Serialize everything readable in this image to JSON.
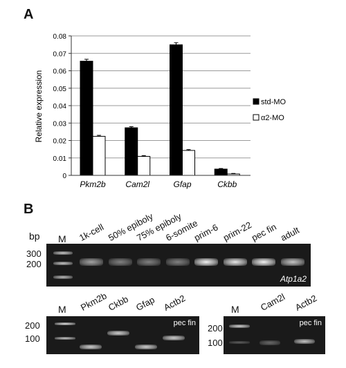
{
  "panel_a": {
    "label": "A"
  },
  "panel_b": {
    "label": "B"
  },
  "chart_data": {
    "type": "bar",
    "categories": [
      "Pkm2b",
      "Cam2l",
      "Gfap",
      "Ckbb"
    ],
    "series": [
      {
        "name": "std-MO",
        "values": [
          0.0655,
          0.0273,
          0.0749,
          0.0036
        ],
        "color": "#000000"
      },
      {
        "name": "α2-MO",
        "values": [
          0.0224,
          0.0109,
          0.0143,
          0.0008
        ],
        "color": "#ffffff"
      }
    ],
    "ylabel": "Relative expression",
    "xlabel": "",
    "ylim": [
      0,
      0.08
    ],
    "yticks": [
      "0",
      "0.01",
      "0.02",
      "0.03",
      "0.04",
      "0.05",
      "0.06",
      "0.07",
      "0.08"
    ],
    "grid": true,
    "legend": "right",
    "legend_entries": [
      "std-MO",
      "α2-MO"
    ]
  },
  "gel1": {
    "bp_label": "bp",
    "marker_label": "M",
    "bp_ticks": [
      "300",
      "200"
    ],
    "lanes": [
      "1k-cell",
      "50% epiboly",
      "75% epiboly",
      "6-somite",
      "prim-6",
      "prim-22",
      "pec fin",
      "adult"
    ],
    "gene": "Atp1a2",
    "band_brightness": [
      0.6,
      0.45,
      0.45,
      0.45,
      0.95,
      0.9,
      0.95,
      0.75
    ]
  },
  "gel2": {
    "marker_label": "M",
    "bp_ticks": [
      "200",
      "100"
    ],
    "lanes": [
      "Pkm2b",
      "Ckbb",
      "Gfap",
      "Actb2"
    ],
    "tissue": "pec fin"
  },
  "gel3": {
    "marker_label": "M",
    "bp_ticks": [
      "200",
      "100"
    ],
    "lanes": [
      "Cam2l",
      "Actb2"
    ],
    "tissue": "pec fin"
  }
}
